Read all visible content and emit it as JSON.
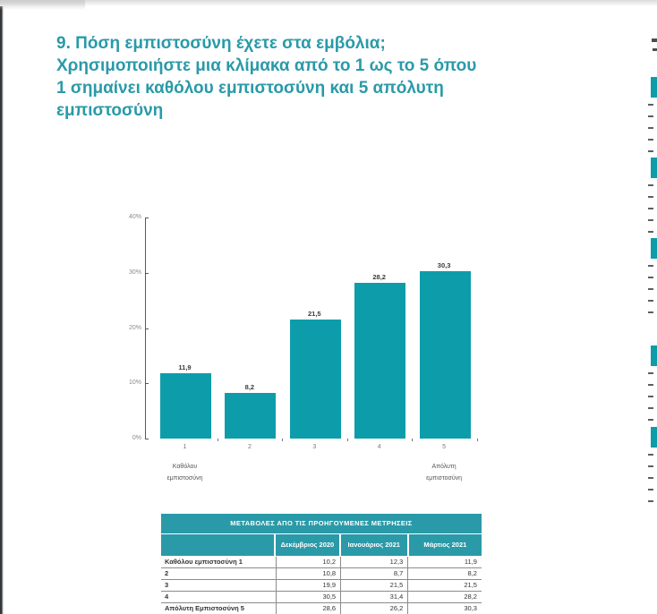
{
  "title": {
    "lines": [
      "9. Πόση εμπιστοσύνη έχετε στα εμβόλια;",
      "Χρησιμοποιήστε μια κλίμακα από το 1 ως το 5 όπου",
      "1 σημαίνει καθόλου εμπιστοσύνη και 5 απόλυτη",
      "εμπιστοσύνη"
    ]
  },
  "colors": {
    "accent_teal": "#0d9daa",
    "title_text": "#2a9aa8",
    "table_header_bg": "#2b9aa8",
    "body_text": "#3a3a3a"
  },
  "chart_data": {
    "type": "bar",
    "title": "",
    "xlabel": "",
    "ylabel": "",
    "categories": [
      "1",
      "2",
      "3",
      "4",
      "5"
    ],
    "values": [
      11.9,
      8.2,
      21.5,
      28.2,
      30.3
    ],
    "value_labels": [
      "11,9",
      "8,2",
      "21,5",
      "28,2",
      "30,3"
    ],
    "ylim": [
      0,
      40
    ],
    "ytick_labels_top_to_bottom": [
      "40%",
      "30%",
      "20%",
      "10%",
      "0%"
    ],
    "grid": false,
    "legend": false,
    "bar_color": "#0d9daa",
    "axis_captions": {
      "first_lines": [
        "Καθόλου",
        "εμπιστοσύνη"
      ],
      "last_lines": [
        "Απόλυτη",
        "εμπιστοσύνη"
      ]
    }
  },
  "table": {
    "title": "ΜΕΤΑΒΟΛΕΣ ΑΠΟ ΤΙΣ ΠΡΟΗΓΟΥΜΕΝΕΣ ΜΕΤΡΗΣΕΙΣ",
    "columns": [
      "",
      "Δεκέμβριος 2020",
      "Ιανουάριος 2021",
      "Μάρτιος 2021"
    ],
    "rows": [
      {
        "label": "Καθόλου εμπιστοσύνη 1",
        "values": [
          "10,2",
          "12,3",
          "11,9"
        ]
      },
      {
        "label": "2",
        "values": [
          "10,8",
          "8,7",
          "8,2"
        ]
      },
      {
        "label": "3",
        "values": [
          "19,9",
          "21,5",
          "21,5"
        ]
      },
      {
        "label": "4",
        "values": [
          "30,5",
          "31,4",
          "28,2"
        ]
      },
      {
        "label": "Απόλυτη Εμπιστοσύνη 5",
        "values": [
          "28,6",
          "26,2",
          "30,3"
        ]
      }
    ]
  }
}
